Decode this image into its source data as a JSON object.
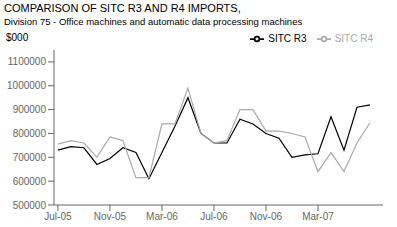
{
  "chart_data": {
    "type": "line",
    "title": "COMPARISON OF SITC R3 AND R4 IMPORTS,",
    "subtitle": "Division 75 - Office machines and automatic data processing machines",
    "ylabel": "$000",
    "x": [
      0,
      1,
      2,
      3,
      4,
      5,
      6,
      7,
      8,
      9,
      10,
      11,
      12,
      13,
      14,
      15,
      16,
      17,
      18,
      19,
      20,
      21,
      22,
      23,
      24
    ],
    "xlim": [
      -0.3,
      25.0
    ],
    "xticks": [
      {
        "value": 0,
        "label": "Jul-05"
      },
      {
        "value": 4,
        "label": "Nov-05"
      },
      {
        "value": 8,
        "label": "Mar-06"
      },
      {
        "value": 12,
        "label": "Jul-06"
      },
      {
        "value": 16,
        "label": "Nov-06"
      },
      {
        "value": 20,
        "label": "Mar-07"
      }
    ],
    "ylim": [
      500000,
      1150000
    ],
    "yticks": [
      500000,
      600000,
      700000,
      800000,
      900000,
      1000000,
      1100000
    ],
    "series": [
      {
        "name": "SITC R3",
        "color": "#000000",
        "values": [
          730000,
          745000,
          740000,
          670000,
          695000,
          740000,
          720000,
          610000,
          720000,
          830000,
          950000,
          800000,
          760000,
          760000,
          860000,
          840000,
          800000,
          780000,
          700000,
          710000,
          715000,
          870000,
          730000,
          910000,
          920000
        ]
      },
      {
        "name": "SITC R4",
        "color": "#aaaaaa",
        "values": [
          755000,
          770000,
          760000,
          700000,
          785000,
          770000,
          615000,
          615000,
          840000,
          840000,
          990000,
          800000,
          760000,
          770000,
          900000,
          900000,
          810000,
          810000,
          800000,
          785000,
          640000,
          720000,
          640000,
          760000,
          845000
        ]
      }
    ],
    "legend": "upper right",
    "grid": false
  }
}
